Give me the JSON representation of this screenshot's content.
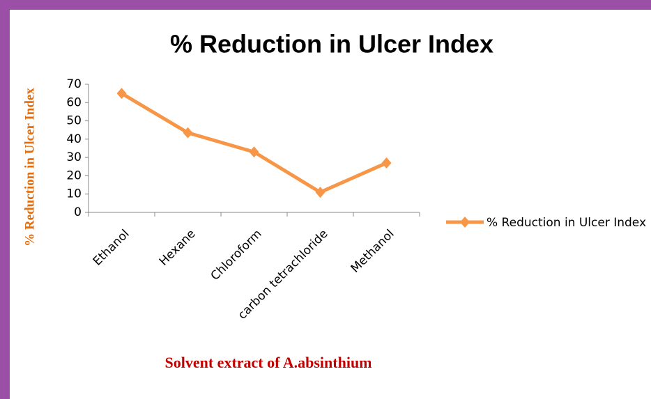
{
  "chart_data": {
    "type": "line",
    "title": "% Reduction in Ulcer Index",
    "x_label": "Solvent extract of A.absinthium",
    "y_label": "% Reduction  in Ulcer Index",
    "categories": [
      "Ethanol",
      "Hexane",
      "Chloroform",
      "carbon tetrachloride",
      "Methanol"
    ],
    "series": [
      {
        "name": "% Reduction in Ulcer Index",
        "color": "#f79646",
        "values": [
          65,
          43.5,
          33,
          11,
          27
        ]
      }
    ],
    "ylim": [
      0,
      70
    ],
    "yticks": [
      0,
      10,
      20,
      30,
      40,
      50,
      60,
      70
    ],
    "grid": false,
    "legend": "right"
  }
}
